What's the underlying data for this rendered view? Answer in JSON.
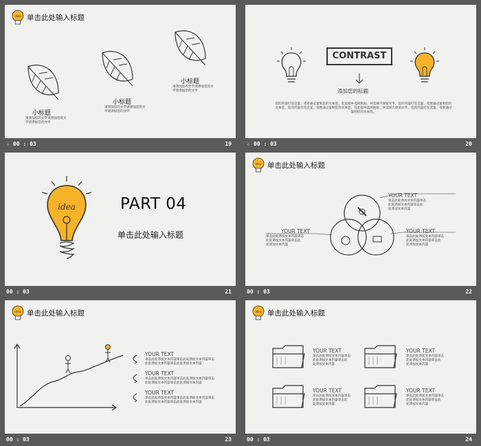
{
  "header_title": "单击此处输入标题",
  "slides": [
    {
      "time": "00 : 03",
      "num": "19",
      "items": [
        {
          "label": "小标题",
          "desc": [
            "请添加您的文字请添加您的文",
            "字请添加您的文字"
          ]
        },
        {
          "label": "小标题",
          "desc": [
            "请添加您的文字请添加您的文",
            "字请添加您的文字"
          ]
        },
        {
          "label": "小标题",
          "desc": [
            "请添加您的文字请添加您的文",
            "字请添加您的文字"
          ]
        }
      ]
    },
    {
      "time": "00 : 03",
      "num": "20",
      "contrast": "CONTRAST",
      "subtitle": "添加您的标题",
      "body": [
        "您的内容打在这里，或者通过复制您的文本后，在此框中选择粘贴，并选择只保留文字。您的内容打在这里，或者通过复制您的",
        "文本后，您的内容打在这里，或者通过复制您的文本后，在此框中选择粘贴，并选择只保留文字。您的内容打在这里，或者通过",
        "复制您的文本后。"
      ]
    },
    {
      "time": "00 : 03",
      "num": "21",
      "part": "PART 04",
      "title": "单击此处输入标题",
      "bulb_word": "idea"
    },
    {
      "time": "00 : 03",
      "num": "22",
      "blocks": [
        {
          "heading": "YOUR TEXT",
          "text": [
            "单击此处添加文本内容单击",
            "此处添加文本内容单击此",
            "处添加文本内容"
          ]
        },
        {
          "heading": "YOUR TEXT",
          "text": [
            "单击此处添加文本内容单击",
            "此处添加文本内容单击此",
            "处添加文本内容"
          ]
        },
        {
          "heading": "YOUR TEXT",
          "text": [
            "单击此处添加文本内容单击",
            "此处添加文本内容单击此",
            "处添加文本内容"
          ]
        }
      ]
    },
    {
      "time": "00 : 03",
      "num": "23",
      "blocks": [
        {
          "heading": "YOUR TEXT",
          "text": [
            "单击此处添加文本内容单击此处添加文本内容单击",
            "此处添加文本内容单击此处添加文本内容"
          ]
        },
        {
          "heading": "YOUR TEXT",
          "text": [
            "单击此处添加文本内容单击此处添加文本内容单击",
            "此处添加文本内容单击此处添加文本内容"
          ]
        },
        {
          "heading": "YOUR TEXT",
          "text": [
            "单击此处添加文本内容单击此处添加文本内容单击",
            "此处添加文本内容单击此处添加文本内容"
          ]
        }
      ]
    },
    {
      "time": "00 : 03",
      "num": "24",
      "blocks": [
        {
          "heading": "YOUR TEXT",
          "text": [
            "单击此处添加文本内容单击",
            "此处添加文本内容单击此",
            "处添加文本内容"
          ]
        },
        {
          "heading": "YOUR TEXT",
          "text": [
            "单击此处添加文本内容单击",
            "此处添加文本内容单击此",
            "处添加文本内容"
          ]
        },
        {
          "heading": "YOUR TEXT",
          "text": [
            "单击此处添加文本内容单击",
            "此处添加文本内容单击此",
            "处添加文本内容"
          ]
        },
        {
          "heading": "YOUR TEXT",
          "text": [
            "单击此处添加文本内容单击",
            "此处添加文本内容单击此",
            "处添加文本内容"
          ]
        }
      ]
    }
  ],
  "colors": {
    "accent": "#f5b32a",
    "slide_bg": "#f1f1ef",
    "frame_bg": "#5a5a5a",
    "ink": "#333333"
  },
  "icons": {
    "bar_marker": "star-icon",
    "header": "lightbulb-icon"
  }
}
